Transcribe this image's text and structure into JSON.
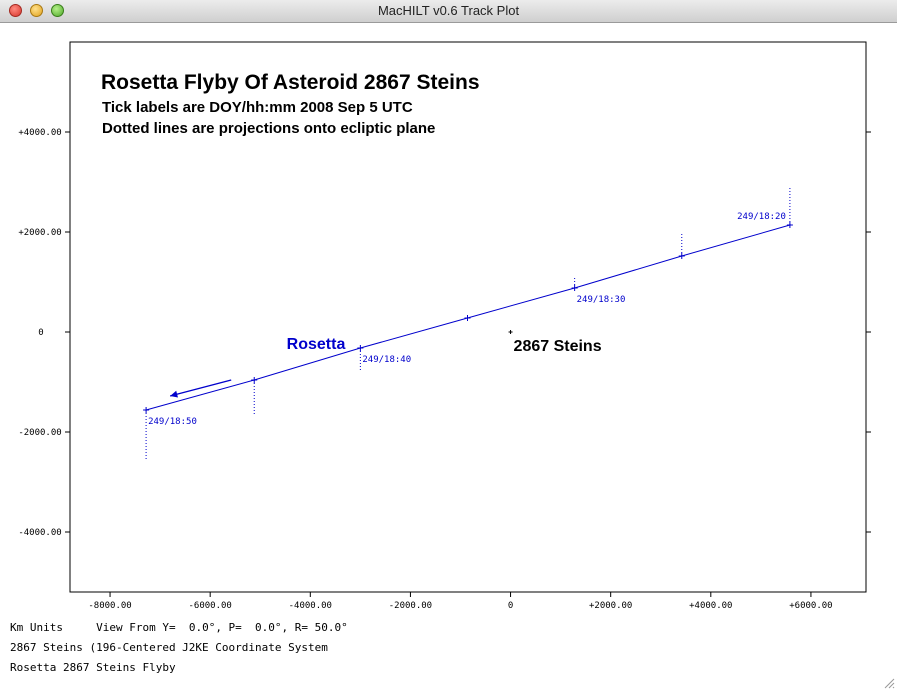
{
  "window": {
    "title": "MacHILT v0.6 Track Plot"
  },
  "chart_data": {
    "type": "line",
    "title": "Rosetta Flyby Of Asteroid 2867 Steins",
    "subtitles": [
      "Tick labels are DOY/hh:mm 2008 Sep 5 UTC",
      "Dotted lines are projections onto ecliptic plane"
    ],
    "xlim": [
      -8800,
      7100
    ],
    "ylim": [
      -5200,
      5800
    ],
    "x_ticks": [
      -8000,
      -6000,
      -4000,
      -2000,
      0,
      2000,
      4000,
      6000
    ],
    "x_tick_labels": [
      "-8000.00",
      "-6000.00",
      "-4000.00",
      "-2000.00",
      "0",
      "+2000.00",
      "+4000.00",
      "+6000.00"
    ],
    "y_ticks": [
      4000,
      2000,
      0,
      -2000,
      -4000
    ],
    "y_tick_labels": [
      "+4000.00",
      "+2000.00",
      "0",
      "-2000.00",
      "-4000.00"
    ],
    "series": [
      {
        "name": "Rosetta",
        "color": "#0000cc",
        "points": [
          {
            "x": 5580,
            "y": 2140
          },
          {
            "x": 3420,
            "y": 1520
          },
          {
            "x": 1280,
            "y": 880
          },
          {
            "x": -860,
            "y": 280
          },
          {
            "x": -3000,
            "y": -320
          },
          {
            "x": -5120,
            "y": -960
          },
          {
            "x": -7280,
            "y": -1560
          }
        ],
        "projection_ends": [
          2880,
          2000,
          1100,
          240,
          -780,
          -1640,
          -2560
        ]
      }
    ],
    "tick_labels": [
      {
        "label": "249/18:20",
        "x": 5580,
        "y": 2140
      },
      {
        "label": "249/18:30",
        "x": 1280,
        "y": 880
      },
      {
        "label": "249/18:40",
        "x": -3000,
        "y": -320
      },
      {
        "label": "249/18:50",
        "x": -7280,
        "y": -1560
      }
    ],
    "annotations": [
      {
        "text": "Rosetta",
        "x": -3000,
        "y": -320,
        "color": "#0000cc"
      },
      {
        "text": "2867 Steins",
        "x": 0,
        "y": 0,
        "color": "#000000"
      }
    ],
    "direction_arrow": {
      "from": {
        "x": -5580,
        "y": -960
      },
      "to": {
        "x": -6800,
        "y": -1280
      }
    },
    "grid": false,
    "legend": "none"
  },
  "footer": {
    "units": "Km Units",
    "view": "View From Y=  0.0°, P=  0.0°, R= 50.0°",
    "system": "2867 Steins (196-Centered J2KE Coordinate System",
    "caption": "Rosetta 2867 Steins Flyby"
  }
}
